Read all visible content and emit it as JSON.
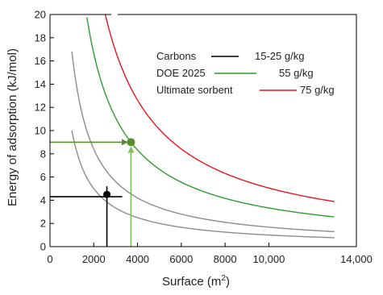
{
  "chart_data": {
    "type": "line",
    "xlabel": "Surface (m",
    "xlabel_sup": "2",
    "xlabel_end": ")",
    "ylabel": "Energy of adsorption (kJ/mol)",
    "xlim": [
      0,
      14000
    ],
    "ylim": [
      0,
      20
    ],
    "x_ticks": [
      {
        "value": 0,
        "label": "0"
      },
      {
        "value": 2000,
        "label": "2000"
      },
      {
        "value": 4000,
        "label": "4000"
      },
      {
        "value": 6000,
        "label": "6000"
      },
      {
        "value": 8000,
        "label": "8000"
      },
      {
        "value": 10000,
        "label": "10,000"
      },
      {
        "value": 14000,
        "label": "14,000"
      }
    ],
    "y_ticks": [
      0,
      2,
      4,
      6,
      8,
      10,
      12,
      14,
      16,
      18,
      20
    ],
    "grid": false,
    "legend": {
      "placement": "top-right",
      "entries": [
        {
          "name": "Carbons",
          "value": "15-25 g/kg",
          "color": "#000000"
        },
        {
          "name": "DOE 2025",
          "value": "55 g/kg",
          "color": "#2e9b2e"
        },
        {
          "name": "Ultimate sorbent",
          "value": "75 g/kg",
          "color": "#e8141c"
        }
      ]
    },
    "series": [
      {
        "color": "#8c8c8c",
        "k": 10000,
        "x_start": 1000,
        "x_end": 13000
      },
      {
        "color": "#8c8c8c",
        "k": 16800,
        "x_start": 1000,
        "x_end": 13000
      },
      {
        "color": "#2e9b2e",
        "k": 33300,
        "x_start": 1660,
        "x_end": 13000
      },
      {
        "color": "#e8141c",
        "k": 50500,
        "x_start": 2500,
        "x_end": 13000
      }
    ],
    "markers": [
      {
        "name": "carbons-point",
        "x": 2600,
        "y": 4.5,
        "color": "#000000"
      },
      {
        "name": "doe-2025-point",
        "x": 3700,
        "y": 9,
        "color": "#5a8a32"
      }
    ],
    "guide_lines": [
      {
        "name": "carbons-vertical",
        "x1": 2600,
        "y1": 0,
        "x2": 2600,
        "y2": 5.2,
        "color": "#000000",
        "arrow": false
      },
      {
        "name": "carbons-horizontal",
        "x1": 0,
        "y1": 4.3,
        "x2": 3300,
        "y2": 4.3,
        "color": "#000000",
        "arrow": false
      },
      {
        "name": "doe-vertical-arrow",
        "x1": 3700,
        "y1": 0,
        "x2": 3700,
        "y2": 8.5,
        "color": "#7fbf5a",
        "arrow": true
      },
      {
        "name": "doe-horizontal-arrow",
        "x1": 0,
        "y1": 9,
        "x2": 3500,
        "y2": 9,
        "color": "#5a8a32",
        "arrow": true
      }
    ]
  }
}
